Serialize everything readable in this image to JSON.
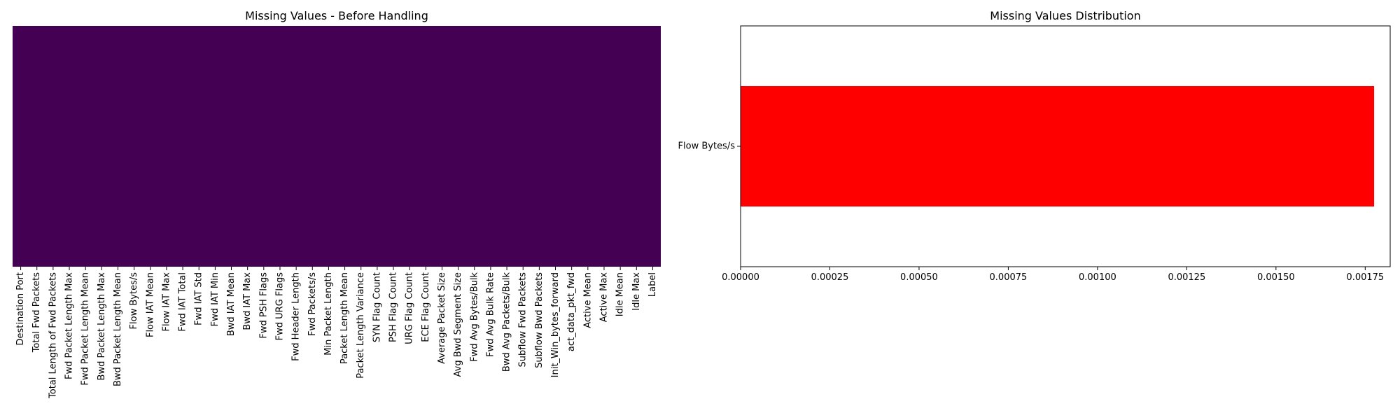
{
  "chart_data": [
    {
      "type": "heatmap",
      "title": "Missing Values - Before Handling",
      "xlabel": "",
      "ylabel": "",
      "x_tick_labels": [
        "Destination Port",
        "Total Fwd Packets",
        "Total Length of Fwd Packets",
        "Fwd Packet Length Max",
        "Fwd Packet Length Mean",
        "Bwd Packet Length Max",
        "Bwd Packet Length Mean",
        "Flow Bytes/s",
        "Flow IAT Mean",
        "Flow IAT Max",
        "Fwd IAT Total",
        "Fwd IAT Std",
        "Fwd IAT Min",
        "Bwd IAT Mean",
        "Bwd IAT Max",
        "Fwd PSH Flags",
        "Fwd URG Flags",
        "Fwd Header Length",
        "Fwd Packets/s",
        "Min Packet Length",
        "Packet Length Mean",
        "Packet Length Variance",
        "SYN Flag Count",
        "PSH Flag Count",
        "URG Flag Count",
        "ECE Flag Count",
        "Average Packet Size",
        "Avg Bwd Segment Size",
        "Fwd Avg Bytes/Bulk",
        "Fwd Avg Bulk Rate",
        "Bwd Avg Packets/Bulk",
        "Subflow Fwd Packets",
        "Subflow Bwd Packets",
        "Init_Win_bytes_forward",
        "act_data_pkt_fwd",
        "Active Mean",
        "Active Max",
        "Idle Mean",
        "Idle Max",
        "Label"
      ],
      "fill_value": 0,
      "colors": {
        "fill": "#440154"
      },
      "grid": false
    },
    {
      "type": "bar",
      "orientation": "horizontal",
      "title": "Missing Values Distribution",
      "xlabel": "",
      "ylabel": "",
      "categories": [
        "Flow Bytes/s"
      ],
      "values": [
        0.001775
      ],
      "xlim": [
        0,
        0.00182
      ],
      "x_ticks": [
        0,
        0.00025,
        0.0005,
        0.00075,
        0.001,
        0.00125,
        0.0015,
        0.00175
      ],
      "x_tick_labels": [
        "0.00000",
        "0.00025",
        "0.00050",
        "0.00075",
        "0.00100",
        "0.00125",
        "0.00150",
        "0.00175"
      ],
      "colors": {
        "bar": "#ff0000"
      },
      "grid": false
    }
  ]
}
